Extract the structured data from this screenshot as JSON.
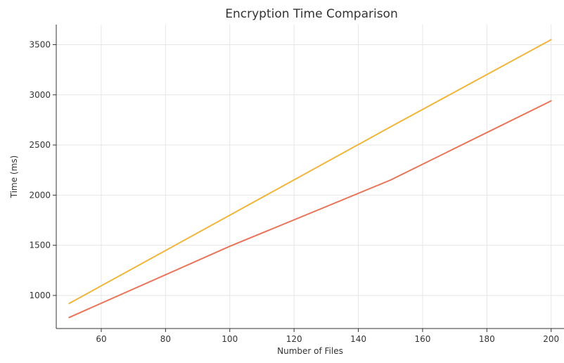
{
  "chart_data": {
    "type": "line",
    "title": "Encryption Time Comparison",
    "xlabel": "Number of Files",
    "ylabel": "Time (ms)",
    "xlim": [
      46,
      204
    ],
    "ylim": [
      670,
      3700
    ],
    "x_ticks": [
      60,
      80,
      100,
      120,
      140,
      160,
      180,
      200
    ],
    "y_ticks": [
      1000,
      1500,
      2000,
      2500,
      3000,
      3500
    ],
    "grid": true,
    "legend": "none",
    "x": [
      50,
      100,
      150,
      200
    ],
    "series": [
      {
        "color": "#f0b63c",
        "values": [
          920,
          1800,
          2680,
          3550
        ]
      },
      {
        "color": "#e8755a",
        "values": [
          780,
          1490,
          2150,
          2940
        ]
      }
    ]
  }
}
